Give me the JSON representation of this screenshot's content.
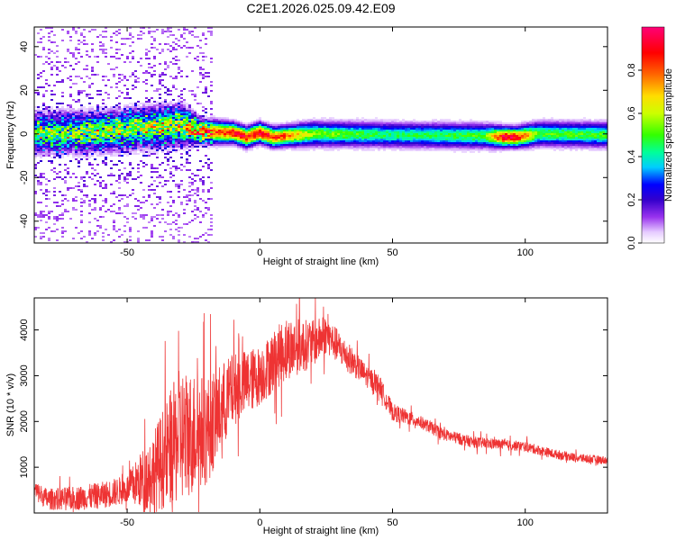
{
  "figure_title": "C2E1.2026.025.09.42.E09",
  "chart_data": [
    {
      "type": "heatmap",
      "title": "C2E1.2026.025.09.42.E09",
      "xlabel": "Height of straight line (km)",
      "ylabel": "Frequency (Hz)",
      "xlim": [
        -85,
        131
      ],
      "ylim": [
        -50,
        49
      ],
      "xticks": [
        -50,
        0,
        50,
        100
      ],
      "xtick_labels": [
        "-50",
        "0",
        "50",
        "100"
      ],
      "yticks": [
        -40,
        -20,
        0,
        20,
        40
      ],
      "ytick_labels": [
        "-40",
        "-20",
        "0",
        "20",
        "40"
      ],
      "colorbar": {
        "label": "Normalized spectral amplitude",
        "range": [
          0.0,
          1.0
        ],
        "ticks": [
          0.0,
          0.2,
          0.4,
          0.6,
          0.8
        ],
        "tick_labels": [
          "0.0",
          "0.2",
          "0.4",
          "0.6",
          "0.8"
        ]
      },
      "ridge": [
        {
          "x": -85,
          "center_hz": 0.5,
          "halfwidth_hz": 5,
          "amp": 0.45
        },
        {
          "x": -60,
          "center_hz": 1.0,
          "halfwidth_hz": 5,
          "amp": 0.5
        },
        {
          "x": -30,
          "center_hz": 4.0,
          "halfwidth_hz": 5,
          "amp": 0.55
        },
        {
          "x": -22,
          "center_hz": 1.0,
          "halfwidth_hz": 3,
          "amp": 0.75
        },
        {
          "x": -10,
          "center_hz": 0.5,
          "halfwidth_hz": 2.5,
          "amp": 0.9
        },
        {
          "x": -5,
          "center_hz": -1.5,
          "halfwidth_hz": 2.5,
          "amp": 0.9
        },
        {
          "x": 0,
          "center_hz": 0.5,
          "halfwidth_hz": 2.5,
          "amp": 0.95
        },
        {
          "x": 5,
          "center_hz": -1.5,
          "halfwidth_hz": 2.5,
          "amp": 0.85
        },
        {
          "x": 10,
          "center_hz": -1.0,
          "halfwidth_hz": 2.5,
          "amp": 0.8
        },
        {
          "x": 20,
          "center_hz": 0.0,
          "halfwidth_hz": 3,
          "amp": 0.55
        },
        {
          "x": 50,
          "center_hz": -0.5,
          "halfwidth_hz": 3,
          "amp": 0.45
        },
        {
          "x": 85,
          "center_hz": -1.0,
          "halfwidth_hz": 3,
          "amp": 0.5
        },
        {
          "x": 92,
          "center_hz": -1.5,
          "halfwidth_hz": 2.5,
          "amp": 0.95
        },
        {
          "x": 97,
          "center_hz": -1.5,
          "halfwidth_hz": 2.5,
          "amp": 0.9
        },
        {
          "x": 105,
          "center_hz": 0.0,
          "halfwidth_hz": 3,
          "amp": 0.5
        },
        {
          "x": 131,
          "center_hz": -0.5,
          "halfwidth_hz": 3,
          "amp": 0.5
        }
      ]
    },
    {
      "type": "line",
      "xlabel": "Height of straight line (km)",
      "ylabel": "SNR (10 * v/v)",
      "xlim": [
        -85,
        131
      ],
      "ylim": [
        0,
        4700
      ],
      "xticks": [
        -50,
        0,
        50,
        100
      ],
      "xtick_labels": [
        "-50",
        "0",
        "50",
        "100"
      ],
      "yticks": [
        1000,
        2000,
        3000,
        4000
      ],
      "ytick_labels": [
        "1000",
        "2000",
        "3000",
        "4000"
      ],
      "color": "#ee3333",
      "series": [
        {
          "name": "SNR",
          "x": [
            -85,
            -80,
            -70,
            -60,
            -50,
            -40,
            -30,
            -20,
            -10,
            0,
            10,
            20,
            25,
            30,
            40,
            45,
            50,
            60,
            70,
            80,
            90,
            100,
            110,
            120,
            131
          ],
          "values": [
            500,
            300,
            320,
            380,
            520,
            900,
            1700,
            1800,
            2700,
            3000,
            3600,
            3700,
            3900,
            3600,
            3000,
            2800,
            2200,
            2000,
            1700,
            1550,
            1500,
            1450,
            1300,
            1200,
            1150
          ]
        }
      ],
      "noise_amplitude": [
        {
          "x": -85,
          "amp": 220
        },
        {
          "x": -50,
          "amp": 320
        },
        {
          "x": -40,
          "amp": 900
        },
        {
          "x": -30,
          "amp": 1500
        },
        {
          "x": -20,
          "amp": 1200
        },
        {
          "x": -10,
          "amp": 800
        },
        {
          "x": 0,
          "amp": 650
        },
        {
          "x": 10,
          "amp": 700
        },
        {
          "x": 25,
          "amp": 420
        },
        {
          "x": 40,
          "amp": 250
        },
        {
          "x": 60,
          "amp": 140
        },
        {
          "x": 100,
          "amp": 110
        },
        {
          "x": 131,
          "amp": 90
        }
      ]
    }
  ]
}
